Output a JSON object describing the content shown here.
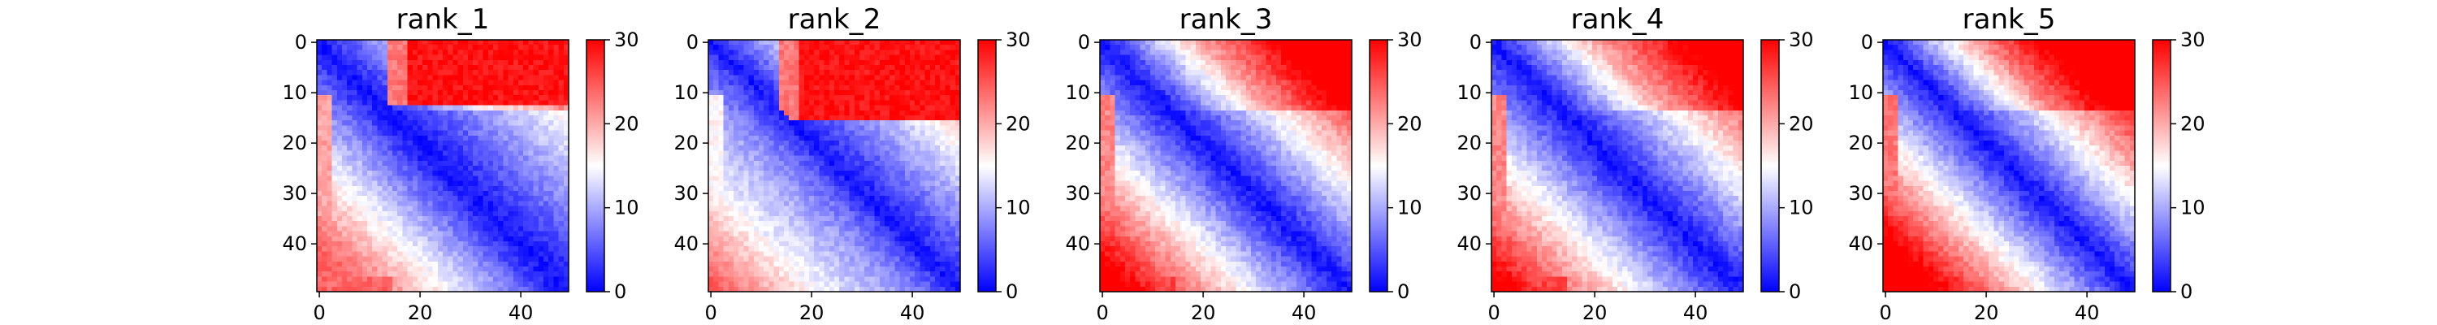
{
  "chart_data": {
    "type": "heatmap",
    "matrix_size": 50,
    "colormap": "bwr",
    "color_range": [
      0,
      30
    ],
    "colorbar_ticks": [
      0,
      10,
      20,
      30
    ],
    "x_ticks": [
      0,
      20,
      40
    ],
    "y_ticks": [
      0,
      10,
      20,
      30,
      40
    ],
    "grid": false,
    "legend": "colorbar-right-of-each-panel",
    "panels": [
      {
        "title": "rank_1",
        "diag_slope": 0.38,
        "upper_block_rows": 13,
        "upper_block_start_col": 14,
        "upper_block_value": 29,
        "lower_left_value": 24,
        "lower_left_sharpness": 0.9
      },
      {
        "title": "rank_2",
        "diag_slope": 0.45,
        "upper_block_rows": 16,
        "upper_block_start_col": 14,
        "upper_block_value": 29,
        "lower_left_value": 18,
        "lower_left_sharpness": 0.6
      },
      {
        "title": "rank_3",
        "diag_slope": 0.62,
        "upper_block_rows": 0,
        "upper_block_start_col": 20,
        "upper_block_value": 28,
        "lower_left_value": 26,
        "lower_left_sharpness": 1.2
      },
      {
        "title": "rank_4",
        "diag_slope": 0.58,
        "upper_block_rows": 0,
        "upper_block_start_col": 18,
        "upper_block_value": 28,
        "lower_left_value": 26,
        "lower_left_sharpness": 1.2
      },
      {
        "title": "rank_5",
        "diag_slope": 0.7,
        "upper_block_rows": 0,
        "upper_block_start_col": 16,
        "upper_block_value": 27,
        "lower_left_value": 27,
        "lower_left_sharpness": 1.4
      }
    ]
  }
}
